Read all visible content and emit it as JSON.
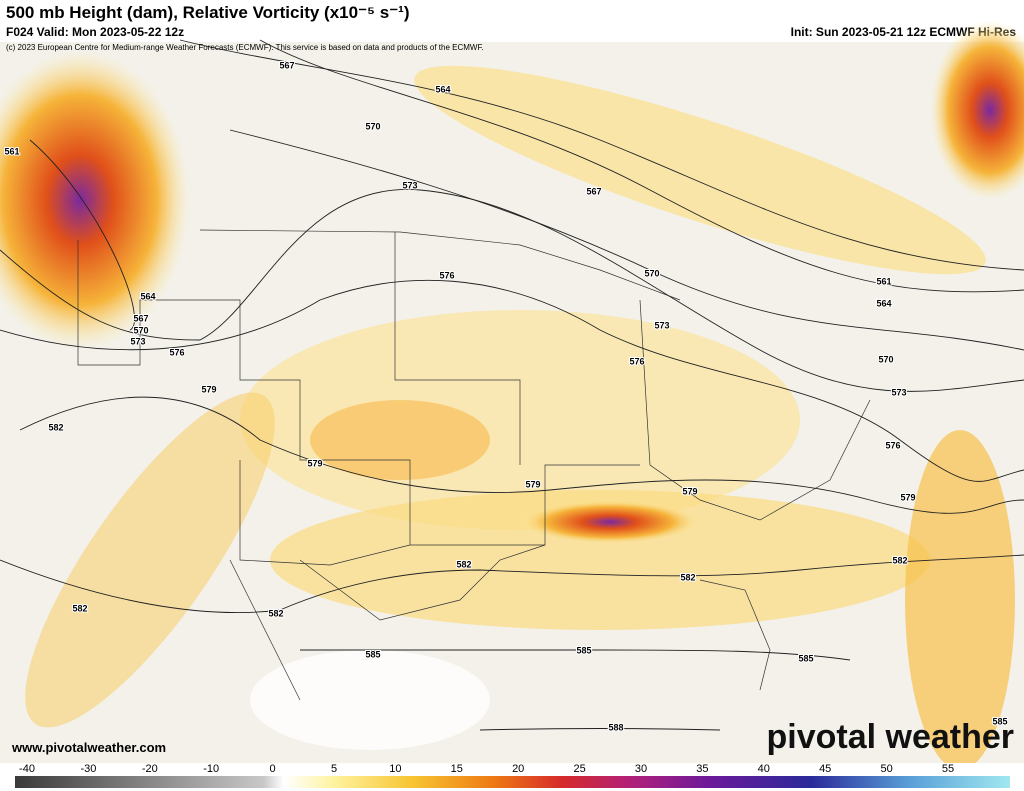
{
  "header": {
    "title": "500 mb Height (dam), Relative Vorticity (x10⁻⁵ s⁻¹)",
    "valid": "F024 Valid: Mon 2023-05-22 12z",
    "init": "Init: Sun 2023-05-21 12z ECMWF Hi-Res",
    "copyright": "(c) 2023 European Centre for Medium-range Weather Forecasts (ECMWF). This service is based on data and products of the ECMWF."
  },
  "contours": {
    "labels": [
      "567",
      "564",
      "570",
      "561",
      "573",
      "567",
      "576",
      "570",
      "564",
      "567",
      "570",
      "573",
      "576",
      "573",
      "561",
      "564",
      "576",
      "570",
      "579",
      "573",
      "582",
      "576",
      "579",
      "579",
      "579",
      "579",
      "582",
      "582",
      "582",
      "582",
      "582",
      "585",
      "585",
      "585",
      "588",
      "585"
    ]
  },
  "colorbar": {
    "ticks": [
      -40,
      -30,
      -20,
      -10,
      0,
      5,
      10,
      15,
      20,
      25,
      30,
      35,
      40,
      45,
      50,
      55
    ]
  },
  "watermark": {
    "url": "www.pivotalweather.com",
    "brand": "pivotal weather"
  }
}
